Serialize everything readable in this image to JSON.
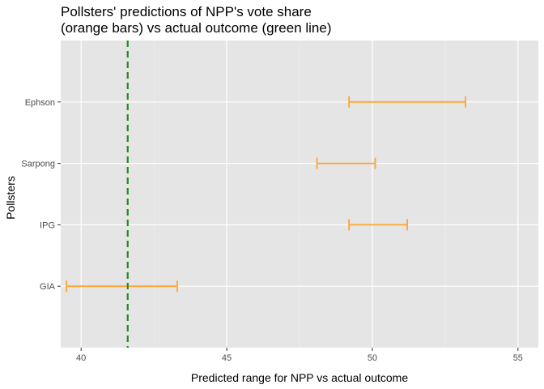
{
  "chart_data": {
    "type": "errorbar",
    "title_line1": "Pollsters' predictions of NPP's vote share",
    "title_line2": "(orange bars) vs actual outcome (green line)",
    "xlabel": "Predicted range for NPP vs actual outcome",
    "ylabel": "Pollsters",
    "xlim": [
      39.3,
      55.7
    ],
    "x_ticks": [
      40,
      45,
      50,
      55
    ],
    "x_tick_labels": [
      "40",
      "45",
      "50",
      "55"
    ],
    "categories": [
      "GIA",
      "IPG",
      "Sarpong",
      "Ephson"
    ],
    "ranges": [
      {
        "pollster": "GIA",
        "low": 39.5,
        "high": 43.3
      },
      {
        "pollster": "IPG",
        "low": 49.2,
        "high": 51.2
      },
      {
        "pollster": "Sarpong",
        "low": 48.1,
        "high": 50.1
      },
      {
        "pollster": "Ephson",
        "low": 49.2,
        "high": 53.2
      }
    ],
    "actual_outcome": 41.6,
    "bar_color": "#FFA533",
    "line_color": "#228B22",
    "panel_background": "#E5E5E5",
    "grid": true
  }
}
